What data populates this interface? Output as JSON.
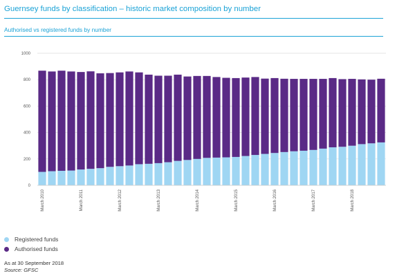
{
  "header": {
    "title": "Guernsey funds by classification – historic market composition by number",
    "subtitle": "Authorised vs registered funds by number"
  },
  "legend": {
    "items": [
      {
        "label": "Registered funds",
        "color": "#9fd6f3"
      },
      {
        "label": "Authorised funds",
        "color": "#5a2a86"
      }
    ]
  },
  "footnote": {
    "as_at": "As at 30 September 2018",
    "source": "Source: GFSC"
  },
  "chart_data": {
    "type": "bar",
    "stacked": true,
    "grid": true,
    "ylim": [
      0,
      1000
    ],
    "yticks": [
      0,
      200,
      400,
      600,
      800,
      1000
    ],
    "ytick_labels": [
      "0",
      "200",
      "400",
      "600",
      "800",
      "1000"
    ],
    "x_tick_labels": [
      {
        "index": 0,
        "label": "March 2010"
      },
      {
        "index": 4,
        "label": "March 2011"
      },
      {
        "index": 8,
        "label": "March 2012"
      },
      {
        "index": 12,
        "label": "March 2013"
      },
      {
        "index": 16,
        "label": "March 2014"
      },
      {
        "index": 20,
        "label": "March 2015"
      },
      {
        "index": 24,
        "label": "March 2016"
      },
      {
        "index": 28,
        "label": "March 2017"
      },
      {
        "index": 32,
        "label": "March 2018"
      }
    ],
    "series": [
      {
        "name": "Registered funds",
        "color": "#9fd6f3",
        "values": [
          102,
          107,
          110,
          112,
          120,
          125,
          130,
          140,
          145,
          150,
          160,
          163,
          168,
          175,
          185,
          192,
          200,
          208,
          210,
          212,
          215,
          222,
          230,
          238,
          245,
          252,
          258,
          262,
          268,
          278,
          288,
          292,
          300,
          312,
          318,
          325
        ]
      },
      {
        "name": "Authorised funds",
        "color": "#5a2a86",
        "values": [
          766,
          755,
          758,
          750,
          738,
          738,
          718,
          710,
          710,
          712,
          695,
          675,
          662,
          655,
          653,
          632,
          628,
          620,
          610,
          602,
          597,
          594,
          590,
          570,
          567,
          555,
          548,
          544,
          538,
          528,
          524,
          512,
          506,
          490,
          482,
          482
        ]
      }
    ]
  }
}
